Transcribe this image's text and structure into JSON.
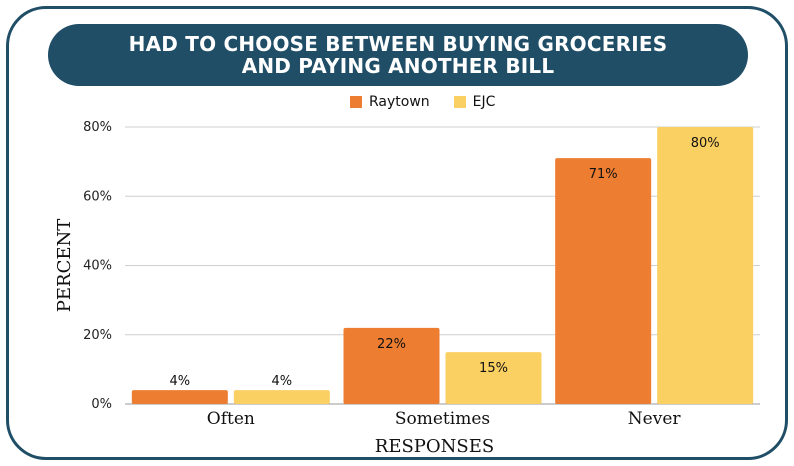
{
  "title": "HAD TO CHOOSE BETWEEN BUYING GROCERIES\nAND PAYING ANOTHER BILL",
  "legend": [
    {
      "name": "Raytown",
      "color": "#ED7D31"
    },
    {
      "name": "EJC",
      "color": "#FBD063"
    }
  ],
  "chart_data": {
    "type": "bar",
    "title": "HAD TO CHOOSE BETWEEN BUYING GROCERIES AND PAYING ANOTHER BILL",
    "categories": [
      "Often",
      "Sometimes",
      "Never"
    ],
    "series": [
      {
        "name": "Raytown",
        "values": [
          4,
          22,
          71
        ],
        "labels": [
          "4%",
          "22%",
          "71%"
        ],
        "color": "#ED7D31"
      },
      {
        "name": "EJC",
        "values": [
          4,
          15,
          80
        ],
        "labels": [
          "4%",
          "15%",
          "80%"
        ],
        "color": "#FBD063"
      }
    ],
    "xlabel": "RESPONSES",
    "ylabel": "PERCENT",
    "ylim": [
      0,
      80
    ],
    "yticks": [
      "0%",
      "20%",
      "40%",
      "60%",
      "80%"
    ],
    "grid": true,
    "legend_position": "top"
  }
}
